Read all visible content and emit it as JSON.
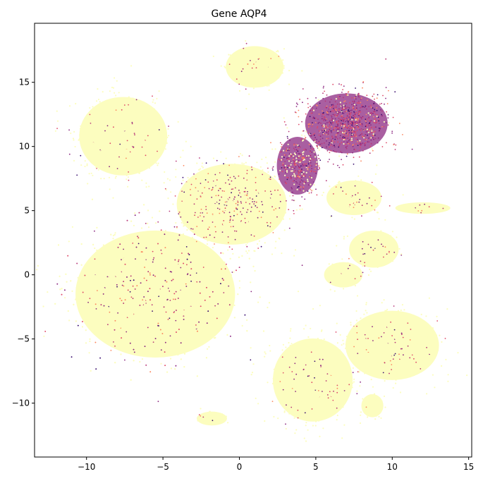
{
  "chart_data": {
    "type": "scatter",
    "title": "Gene AQP4",
    "xlabel": "",
    "ylabel": "",
    "xlim": [
      -13.4,
      15.2
    ],
    "ylim": [
      -14.2,
      19.6
    ],
    "xticks": [
      -10,
      -5,
      0,
      5,
      10,
      15
    ],
    "yticks": [
      -10,
      -5,
      0,
      5,
      10,
      15
    ],
    "grid": false,
    "legend": "none",
    "colormap": "magma_r",
    "colors": {
      "low": "#fcfdbf",
      "mid_low": "#fb8861",
      "mid": "#de4968",
      "mid_high": "#b73779",
      "high": "#8c2981",
      "max": "#3b0f70"
    },
    "clusters": [
      {
        "name": "top-center",
        "center": [
          1.0,
          16.2
        ],
        "radius": [
          2.1,
          1.8
        ],
        "expression": 0.05
      },
      {
        "name": "upper-left",
        "center": [
          -7.6,
          10.8
        ],
        "radius": [
          3.2,
          3.4
        ],
        "expression": 0.03
      },
      {
        "name": "upper-right-high",
        "center": [
          7.0,
          11.8
        ],
        "radius": [
          3.0,
          2.6
        ],
        "expression": 0.85
      },
      {
        "name": "center-middle",
        "center": [
          -0.5,
          5.5
        ],
        "radius": [
          4.0,
          3.5
        ],
        "expression": 0.15
      },
      {
        "name": "stream",
        "center": [
          3.8,
          8.5
        ],
        "radius": [
          1.5,
          2.5
        ],
        "expression": 0.55
      },
      {
        "name": "left-large",
        "center": [
          -5.5,
          -1.5
        ],
        "radius": [
          5.8,
          5.5
        ],
        "expression": 0.1
      },
      {
        "name": "bottom-center",
        "center": [
          4.8,
          -8.2
        ],
        "radius": [
          2.9,
          3.6
        ],
        "expression": 0.04
      },
      {
        "name": "right-bottom",
        "center": [
          10.0,
          -5.5
        ],
        "radius": [
          3.4,
          3.0
        ],
        "expression": 0.04
      },
      {
        "name": "right-middle",
        "center": [
          8.8,
          2.0
        ],
        "radius": [
          1.8,
          1.6
        ],
        "expression": 0.05
      },
      {
        "name": "right-small",
        "center": [
          6.8,
          0.0
        ],
        "radius": [
          1.4,
          1.1
        ],
        "expression": 0.05
      },
      {
        "name": "lower-right-small",
        "center": [
          8.7,
          -10.2
        ],
        "radius": [
          0.8,
          1.0
        ],
        "expression": 0.04
      },
      {
        "name": "bottom-left-small",
        "center": [
          -1.8,
          -11.2
        ],
        "radius": [
          1.1,
          0.6
        ],
        "expression": 0.04
      },
      {
        "name": "right-strip",
        "center": [
          12.0,
          5.2
        ],
        "radius": [
          2.0,
          0.5
        ],
        "expression": 0.06
      },
      {
        "name": "mid-right",
        "center": [
          7.5,
          6.0
        ],
        "radius": [
          2.0,
          1.5
        ],
        "expression": 0.1
      }
    ]
  }
}
